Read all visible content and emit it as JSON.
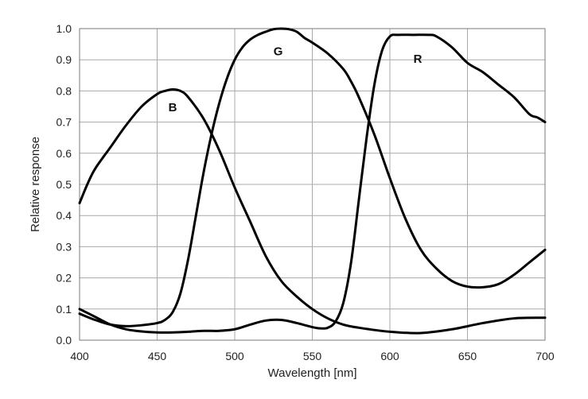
{
  "chart_data": {
    "type": "line",
    "title": "",
    "xlabel": "Wavelength [nm]",
    "ylabel": "Relative response",
    "xlim": [
      400,
      700
    ],
    "ylim": [
      0,
      1.0
    ],
    "grid": true,
    "legend": "none",
    "x_ticks": [
      "400",
      "450",
      "500",
      "550",
      "600",
      "650",
      "700"
    ],
    "y_ticks": [
      "0.0",
      "0.1",
      "0.2",
      "0.3",
      "0.4",
      "0.5",
      "0.6",
      "0.7",
      "0.8",
      "0.9",
      "1.0"
    ],
    "series": [
      {
        "name": "B",
        "points": [
          [
            400,
            0.44
          ],
          [
            405,
            0.5
          ],
          [
            410,
            0.55
          ],
          [
            420,
            0.62
          ],
          [
            430,
            0.69
          ],
          [
            440,
            0.75
          ],
          [
            450,
            0.79
          ],
          [
            455,
            0.8
          ],
          [
            460,
            0.805
          ],
          [
            465,
            0.8
          ],
          [
            470,
            0.78
          ],
          [
            480,
            0.71
          ],
          [
            490,
            0.61
          ],
          [
            500,
            0.49
          ],
          [
            510,
            0.38
          ],
          [
            520,
            0.27
          ],
          [
            530,
            0.19
          ],
          [
            540,
            0.14
          ],
          [
            550,
            0.1
          ],
          [
            560,
            0.07
          ],
          [
            570,
            0.05
          ],
          [
            580,
            0.04
          ],
          [
            600,
            0.027
          ],
          [
            620,
            0.023
          ],
          [
            640,
            0.035
          ],
          [
            660,
            0.055
          ],
          [
            680,
            0.07
          ],
          [
            700,
            0.072
          ]
        ]
      },
      {
        "name": "G",
        "points": [
          [
            400,
            0.085
          ],
          [
            410,
            0.065
          ],
          [
            420,
            0.05
          ],
          [
            430,
            0.045
          ],
          [
            440,
            0.048
          ],
          [
            450,
            0.055
          ],
          [
            455,
            0.065
          ],
          [
            460,
            0.09
          ],
          [
            465,
            0.15
          ],
          [
            470,
            0.26
          ],
          [
            475,
            0.4
          ],
          [
            480,
            0.54
          ],
          [
            485,
            0.66
          ],
          [
            490,
            0.76
          ],
          [
            495,
            0.84
          ],
          [
            500,
            0.9
          ],
          [
            505,
            0.94
          ],
          [
            510,
            0.965
          ],
          [
            515,
            0.98
          ],
          [
            520,
            0.99
          ],
          [
            525,
            0.998
          ],
          [
            530,
            1.0
          ],
          [
            535,
            0.998
          ],
          [
            540,
            0.99
          ],
          [
            545,
            0.97
          ],
          [
            550,
            0.955
          ],
          [
            560,
            0.92
          ],
          [
            570,
            0.87
          ],
          [
            575,
            0.83
          ],
          [
            580,
            0.78
          ],
          [
            590,
            0.66
          ],
          [
            600,
            0.52
          ],
          [
            610,
            0.39
          ],
          [
            620,
            0.29
          ],
          [
            630,
            0.23
          ],
          [
            640,
            0.19
          ],
          [
            650,
            0.172
          ],
          [
            660,
            0.17
          ],
          [
            670,
            0.18
          ],
          [
            680,
            0.21
          ],
          [
            690,
            0.25
          ],
          [
            700,
            0.29
          ]
        ]
      },
      {
        "name": "R",
        "points": [
          [
            400,
            0.1
          ],
          [
            410,
            0.075
          ],
          [
            420,
            0.05
          ],
          [
            430,
            0.035
          ],
          [
            440,
            0.028
          ],
          [
            450,
            0.025
          ],
          [
            460,
            0.025
          ],
          [
            470,
            0.027
          ],
          [
            480,
            0.03
          ],
          [
            490,
            0.03
          ],
          [
            500,
            0.035
          ],
          [
            510,
            0.05
          ],
          [
            520,
            0.063
          ],
          [
            530,
            0.065
          ],
          [
            540,
            0.055
          ],
          [
            550,
            0.042
          ],
          [
            555,
            0.038
          ],
          [
            560,
            0.04
          ],
          [
            565,
            0.06
          ],
          [
            570,
            0.12
          ],
          [
            575,
            0.25
          ],
          [
            580,
            0.45
          ],
          [
            585,
            0.65
          ],
          [
            590,
            0.82
          ],
          [
            595,
            0.93
          ],
          [
            600,
            0.975
          ],
          [
            605,
            0.98
          ],
          [
            615,
            0.98
          ],
          [
            625,
            0.98
          ],
          [
            630,
            0.975
          ],
          [
            640,
            0.94
          ],
          [
            650,
            0.89
          ],
          [
            660,
            0.86
          ],
          [
            670,
            0.82
          ],
          [
            680,
            0.78
          ],
          [
            690,
            0.725
          ],
          [
            695,
            0.715
          ],
          [
            700,
            0.7
          ]
        ]
      }
    ],
    "labels": [
      {
        "text": "B",
        "x": 460,
        "y": 0.735
      },
      {
        "text": "G",
        "x": 528,
        "y": 0.915
      },
      {
        "text": "R",
        "x": 618,
        "y": 0.89
      }
    ]
  }
}
